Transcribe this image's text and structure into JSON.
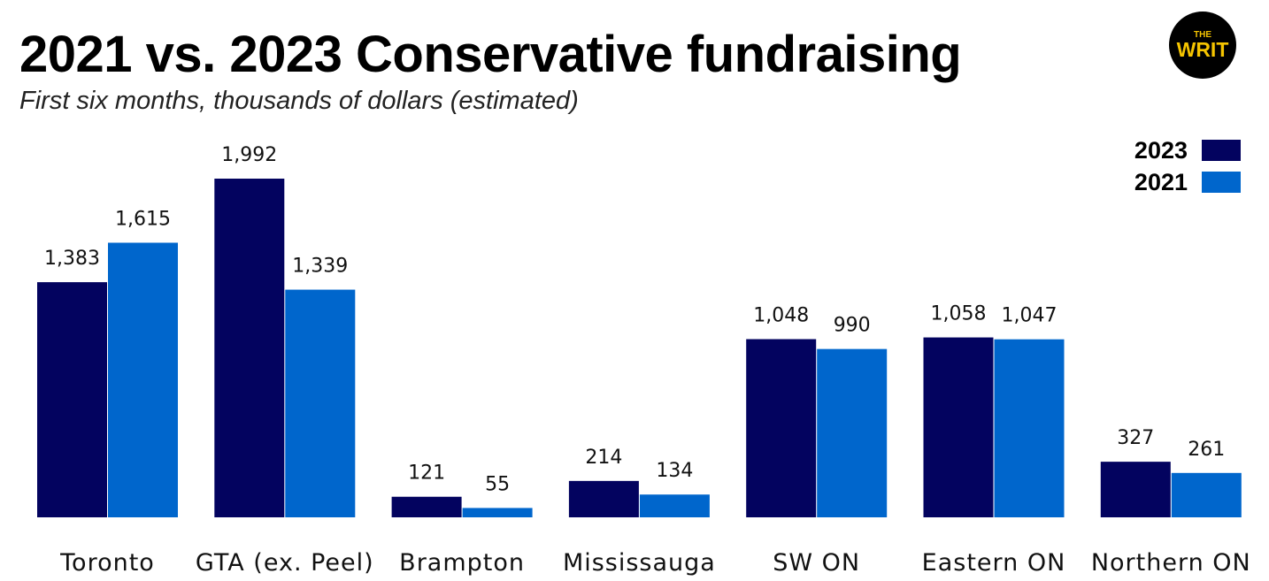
{
  "header": {
    "title": "2021 vs. 2023 Conservative fundraising",
    "subtitle": "First six months, thousands of dollars (estimated)"
  },
  "logo": {
    "top_text": "THE",
    "main_text": "WRIT",
    "background": "#000000",
    "text_color": "#F5C400"
  },
  "colors": {
    "series_2023": "#03035F",
    "series_2021": "#0066CC"
  },
  "chart_data": {
    "type": "bar",
    "title": "2021 vs. 2023 Conservative fundraising",
    "subtitle": "First six months, thousands of dollars (estimated)",
    "categories": [
      "Toronto",
      "GTA (ex. Peel)",
      "Brampton",
      "Mississauga",
      "SW ON",
      "Eastern ON",
      "Northern ON"
    ],
    "series": [
      {
        "name": "2023",
        "color": "#03035F",
        "values": [
          1383,
          1992,
          121,
          214,
          1048,
          1058,
          327
        ],
        "labels": [
          "1,383",
          "1,992",
          "121",
          "214",
          "1,048",
          "1,058",
          "327"
        ]
      },
      {
        "name": "2021",
        "color": "#0066CC",
        "values": [
          1615,
          1339,
          55,
          134,
          990,
          1047,
          261
        ],
        "labels": [
          "1,615",
          "1,339",
          "55",
          "134",
          "990",
          "1,047",
          "261"
        ]
      }
    ],
    "legend_position": "top-right",
    "ylim": [
      0,
      2000
    ],
    "grid": false
  }
}
